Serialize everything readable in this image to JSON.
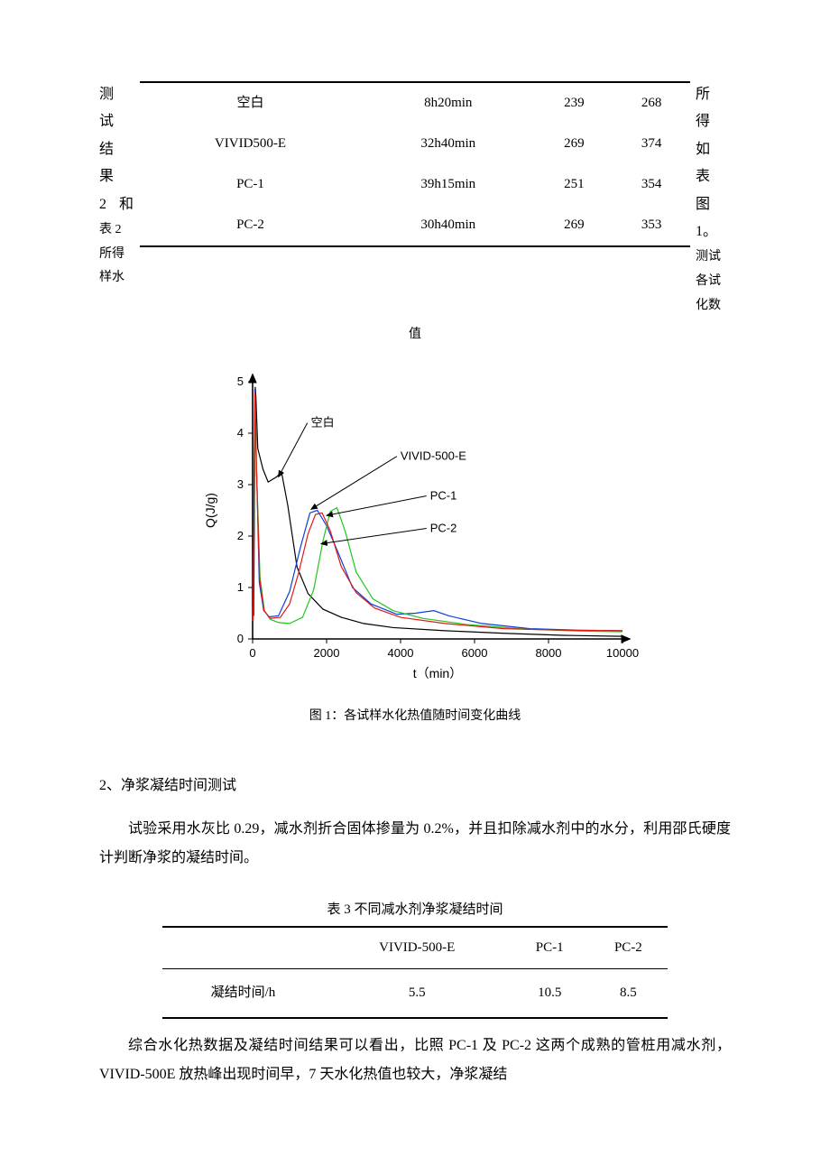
{
  "side_left": {
    "line1": "测试",
    "line2": "结果",
    "line3_a": "2",
    "line3_b": "和",
    "sub1": "表 2",
    "sub2": "所得",
    "sub3": "样水"
  },
  "side_right": {
    "line1": "所得",
    "line2": "如表",
    "line3": "图1。",
    "sub1": "测试",
    "sub2": "各试",
    "sub3": "化数"
  },
  "table2": {
    "rows": [
      {
        "c0": "空白",
        "c1": "8h20min",
        "c2": "239",
        "c3": "268"
      },
      {
        "c0": "VIVID500-E",
        "c1": "32h40min",
        "c2": "269",
        "c3": "374"
      },
      {
        "c0": "PC-1",
        "c1": "39h15min",
        "c2": "251",
        "c3": "354"
      },
      {
        "c0": "PC-2",
        "c1": "30h40min",
        "c2": "269",
        "c3": "353"
      }
    ],
    "caption": "值"
  },
  "chart": {
    "type": "line",
    "caption": "图 1：各试样水化热值随时间变化曲线",
    "x_label": "t（min）",
    "y_label": "Q(J/g)",
    "xlim": [
      0,
      10000
    ],
    "ylim": [
      0,
      5
    ],
    "xticks": [
      0,
      2000,
      4000,
      6000,
      8000,
      10000
    ],
    "yticks": [
      0,
      1,
      2,
      3,
      4,
      5
    ],
    "axis_color": "#000000",
    "tick_fontsize": 13,
    "label_fontsize": 14,
    "annotation_fontsize": 13,
    "background_color": "#ffffff",
    "line_width": 1.2,
    "annotations": [
      {
        "label": "空白",
        "lx": 1480,
        "ly": 4.2,
        "tx": 700,
        "ty": 3.15
      },
      {
        "label": "VIVID-500-E",
        "lx": 3900,
        "ly": 3.55,
        "tx": 1580,
        "ty": 2.52
      },
      {
        "label": "PC-1",
        "lx": 4700,
        "ly": 2.78,
        "tx": 2000,
        "ty": 2.4
      },
      {
        "label": "PC-2",
        "lx": 4700,
        "ly": 2.15,
        "tx": 1850,
        "ty": 1.85
      }
    ],
    "series": [
      {
        "name": "空白",
        "color": "#000000",
        "points": [
          [
            8,
            0.35
          ],
          [
            15,
            0.5
          ],
          [
            30,
            0.45
          ],
          [
            70,
            4.9
          ],
          [
            90,
            4.7
          ],
          [
            140,
            3.7
          ],
          [
            280,
            3.3
          ],
          [
            420,
            3.05
          ],
          [
            650,
            3.15
          ],
          [
            780,
            3.25
          ],
          [
            950,
            2.6
          ],
          [
            1200,
            1.4
          ],
          [
            1500,
            0.88
          ],
          [
            1900,
            0.58
          ],
          [
            2400,
            0.42
          ],
          [
            3000,
            0.3
          ],
          [
            3800,
            0.22
          ],
          [
            5200,
            0.16
          ],
          [
            6800,
            0.11
          ],
          [
            8400,
            0.07
          ],
          [
            10000,
            0.05
          ]
        ]
      },
      {
        "name": "VIVID-500-E",
        "color": "#0a3fe0",
        "points": [
          [
            10,
            0.35
          ],
          [
            60,
            4.85
          ],
          [
            100,
            3.5
          ],
          [
            180,
            1.1
          ],
          [
            300,
            0.55
          ],
          [
            450,
            0.43
          ],
          [
            700,
            0.45
          ],
          [
            1000,
            0.92
          ],
          [
            1300,
            1.8
          ],
          [
            1550,
            2.45
          ],
          [
            1750,
            2.5
          ],
          [
            2000,
            2.2
          ],
          [
            2300,
            1.7
          ],
          [
            2700,
            1.0
          ],
          [
            3200,
            0.68
          ],
          [
            3900,
            0.48
          ],
          [
            4400,
            0.5
          ],
          [
            4900,
            0.55
          ],
          [
            5300,
            0.45
          ],
          [
            6200,
            0.3
          ],
          [
            7500,
            0.2
          ],
          [
            8800,
            0.17
          ],
          [
            10000,
            0.16
          ]
        ]
      },
      {
        "name": "PC-1",
        "color": "#23c41d",
        "points": [
          [
            12,
            0.35
          ],
          [
            70,
            4.7
          ],
          [
            110,
            3.2
          ],
          [
            200,
            1.2
          ],
          [
            320,
            0.55
          ],
          [
            480,
            0.38
          ],
          [
            700,
            0.32
          ],
          [
            1000,
            0.3
          ],
          [
            1350,
            0.42
          ],
          [
            1650,
            0.95
          ],
          [
            1900,
            1.9
          ],
          [
            2100,
            2.48
          ],
          [
            2280,
            2.55
          ],
          [
            2500,
            2.1
          ],
          [
            2800,
            1.3
          ],
          [
            3250,
            0.78
          ],
          [
            3800,
            0.55
          ],
          [
            4600,
            0.4
          ],
          [
            5800,
            0.28
          ],
          [
            7400,
            0.19
          ],
          [
            9000,
            0.15
          ],
          [
            10000,
            0.14
          ]
        ]
      },
      {
        "name": "PC-2",
        "color": "#e01818",
        "points": [
          [
            10,
            0.35
          ],
          [
            65,
            4.8
          ],
          [
            105,
            3.3
          ],
          [
            190,
            1.15
          ],
          [
            310,
            0.55
          ],
          [
            470,
            0.4
          ],
          [
            750,
            0.42
          ],
          [
            1000,
            0.68
          ],
          [
            1250,
            1.3
          ],
          [
            1500,
            2.05
          ],
          [
            1700,
            2.42
          ],
          [
            1880,
            2.45
          ],
          [
            2100,
            2.1
          ],
          [
            2400,
            1.4
          ],
          [
            2800,
            0.9
          ],
          [
            3300,
            0.6
          ],
          [
            4000,
            0.42
          ],
          [
            5200,
            0.3
          ],
          [
            6800,
            0.2
          ],
          [
            8400,
            0.17
          ],
          [
            10000,
            0.16
          ]
        ]
      }
    ]
  },
  "section2_heading": "2、净浆凝结时间测试",
  "section2_para": "试验采用水灰比 0.29，减水剂折合固体掺量为 0.2%，并且扣除减水剂中的水分，利用邵氏硬度计判断净浆的凝结时间。",
  "table3": {
    "caption": "表 3  不同减水剂净浆凝结时间",
    "headers": {
      "h0": "",
      "h1": "VIVID-500-E",
      "h2": "PC-1",
      "h3": "PC-2"
    },
    "row": {
      "c0": "凝结时间/h",
      "c1": "5.5",
      "c2": "10.5",
      "c3": "8.5"
    }
  },
  "bottom_para": "综合水化热数据及凝结时间结果可以看出，比照 PC-1 及 PC-2 这两个成熟的管桩用减水剂，VIVID-500E 放热峰出现时间早，7 天水化热值也较大，净浆凝结"
}
